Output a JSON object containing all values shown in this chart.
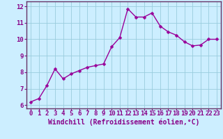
{
  "x": [
    0,
    1,
    2,
    3,
    4,
    5,
    6,
    7,
    8,
    9,
    10,
    11,
    12,
    13,
    14,
    15,
    16,
    17,
    18,
    19,
    20,
    21,
    22,
    23
  ],
  "y": [
    6.2,
    6.4,
    7.2,
    8.2,
    7.6,
    7.9,
    8.1,
    8.3,
    8.4,
    8.5,
    9.55,
    10.1,
    11.85,
    11.35,
    11.35,
    11.6,
    10.8,
    10.45,
    10.25,
    9.85,
    9.6,
    9.65,
    10.0,
    10.0
  ],
  "line_color": "#990099",
  "marker_color": "#990099",
  "bg_color": "#cceeff",
  "grid_color": "#99ccdd",
  "spine_color": "#663366",
  "xlabel": "Windchill (Refroidissement éolien,°C)",
  "xlim": [
    -0.5,
    23.5
  ],
  "ylim": [
    5.8,
    12.3
  ],
  "yticks": [
    6,
    7,
    8,
    9,
    10,
    11,
    12
  ],
  "xticks": [
    0,
    1,
    2,
    3,
    4,
    5,
    6,
    7,
    8,
    9,
    10,
    11,
    12,
    13,
    14,
    15,
    16,
    17,
    18,
    19,
    20,
    21,
    22,
    23
  ],
  "tick_color": "#880088",
  "label_color": "#880088",
  "xlabel_fontsize": 7,
  "tick_fontsize": 6.5,
  "line_width": 1.0,
  "marker_size": 2.5
}
